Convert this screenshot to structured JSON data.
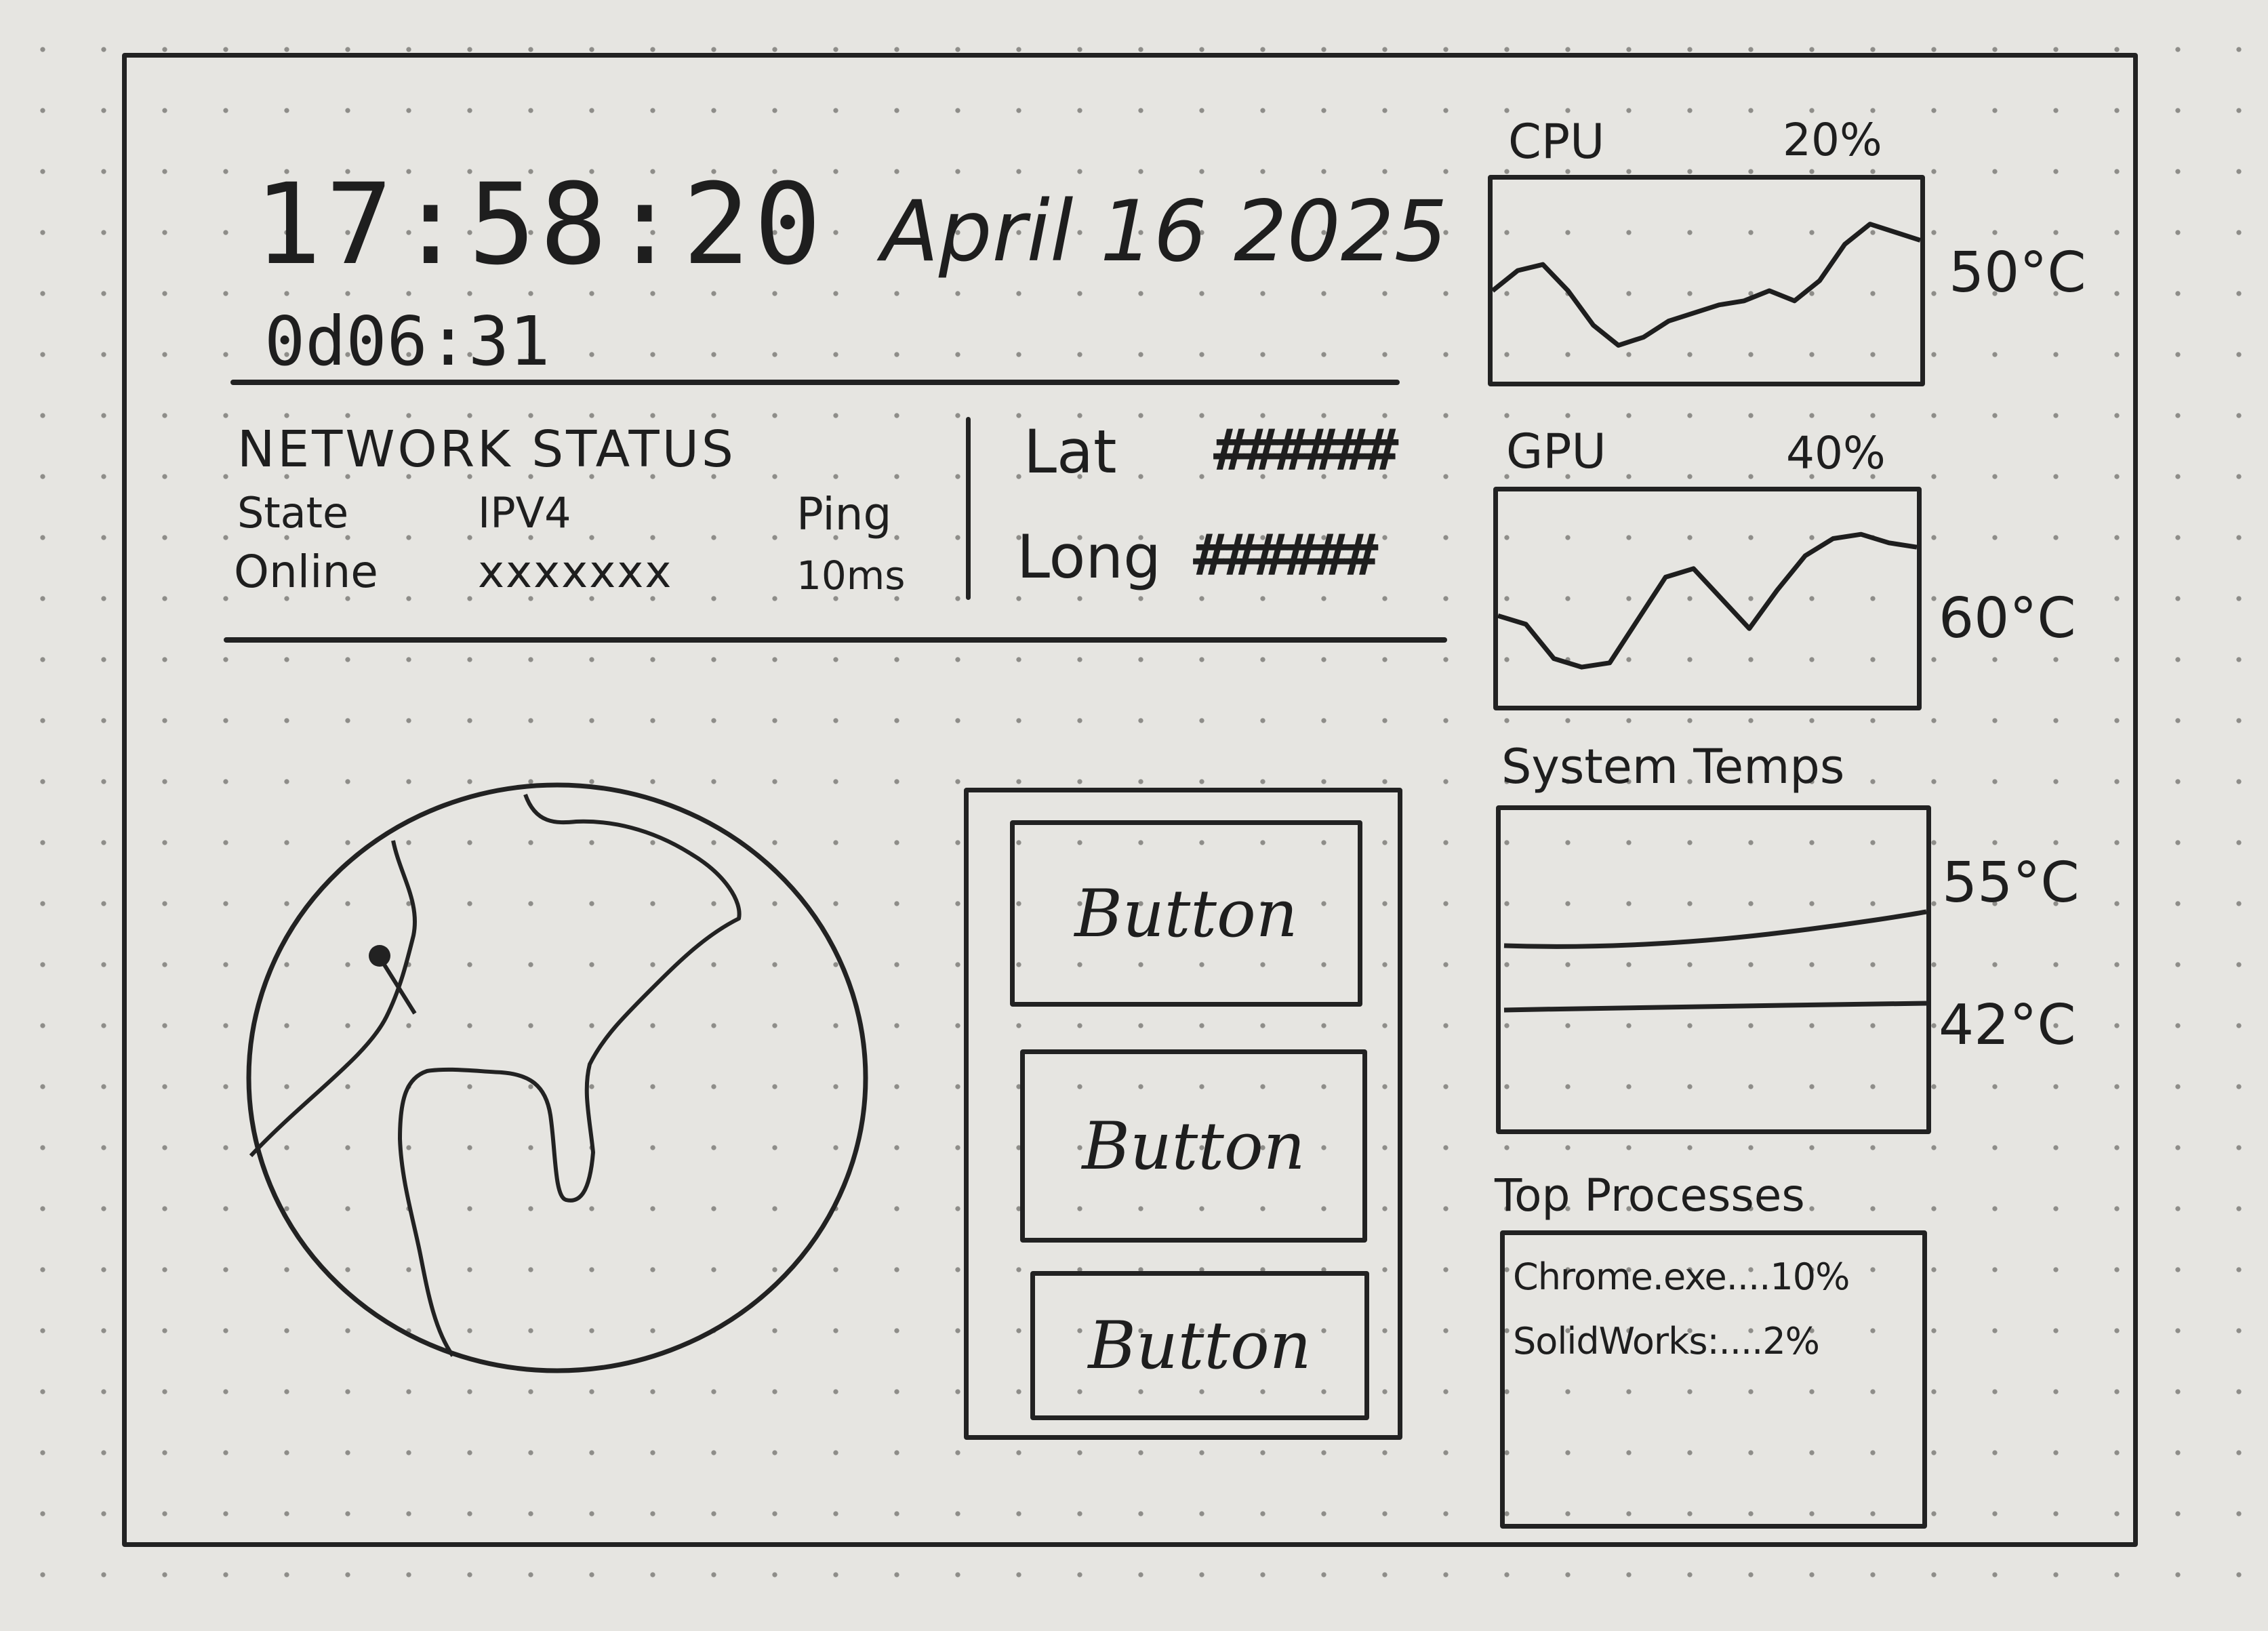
{
  "header": {
    "time": "17:58:20",
    "date": "April 16 2025",
    "uptime": "0d06:31"
  },
  "network": {
    "title": "NETWORK STATUS",
    "columns": [
      {
        "label": "State",
        "value": "Online"
      },
      {
        "label": "IPV4",
        "value": "xxxxxxx"
      },
      {
        "label": "Ping",
        "value": "10ms"
      }
    ],
    "lat_label": "Lat",
    "lat_value": "######",
    "long_label": "Long",
    "long_value": "######"
  },
  "buttons": [
    "Button",
    "Button",
    "Button"
  ],
  "cpu": {
    "title": "CPU",
    "percent": "20%",
    "temp": "50°C",
    "trend": [
      0.55,
      0.45,
      0.42,
      0.55,
      0.72,
      0.82,
      0.78,
      0.7,
      0.66,
      0.62,
      0.6,
      0.55,
      0.6,
      0.5,
      0.32,
      0.22,
      0.26,
      0.3
    ]
  },
  "gpu": {
    "title": "GPU",
    "percent": "40%",
    "temp": "60°C",
    "trend": [
      0.58,
      0.62,
      0.78,
      0.82,
      0.8,
      0.6,
      0.4,
      0.36,
      0.5,
      0.64,
      0.46,
      0.3,
      0.22,
      0.2,
      0.24,
      0.26
    ]
  },
  "system_temps": {
    "title": "System Temps",
    "readings": [
      {
        "label": "55°C",
        "level": 0.55
      },
      {
        "label": "42°C",
        "level": 0.42
      }
    ]
  },
  "top_processes": {
    "title": "Top Processes",
    "items": [
      "Chrome.exe....10%",
      "SolidWorks:....2%"
    ]
  },
  "colors": {
    "ink": "#1e1e1e",
    "paper": "#e6e5e1",
    "dots": "#8e8d89"
  }
}
